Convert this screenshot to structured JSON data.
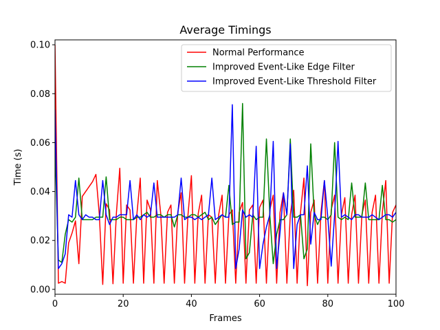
{
  "chart_data": {
    "type": "line",
    "title": "Average Timings",
    "xlabel": "Frames",
    "ylabel": "Time (s)",
    "xlim": [
      0,
      100
    ],
    "ylim": [
      -0.002,
      0.102
    ],
    "xticks": [
      0,
      20,
      40,
      60,
      80,
      100
    ],
    "yticks": [
      0.0,
      0.02,
      0.04,
      0.06,
      0.08,
      0.1
    ],
    "xtick_labels": [
      "0",
      "20",
      "40",
      "60",
      "80",
      "100"
    ],
    "ytick_labels": [
      "0.00",
      "0.02",
      "0.04",
      "0.06",
      "0.08",
      "0.10"
    ],
    "grid": false,
    "legend_position": "top-right",
    "series": [
      {
        "name": "Normal Performance",
        "color": "#ff0000",
        "values": [
          0.1,
          0.0025,
          0.0032,
          0.0025,
          0.019,
          0.023,
          0.028,
          0.0105,
          0.038,
          0.04,
          0.042,
          0.044,
          0.047,
          0.0305,
          0.002,
          0.035,
          0.0325,
          0.0023,
          0.031,
          0.0495,
          0.0025,
          0.0345,
          0.0325,
          0.0025,
          0.0305,
          0.0455,
          0.0025,
          0.0365,
          0.0325,
          0.0025,
          0.0445,
          0.031,
          0.0025,
          0.0315,
          0.0345,
          0.0025,
          0.0315,
          0.0395,
          0.0025,
          0.0305,
          0.0465,
          0.0025,
          0.031,
          0.0385,
          0.0025,
          0.0305,
          0.0295,
          0.0025,
          0.0305,
          0.0385,
          0.0025,
          0.0305,
          0.0325,
          0.0025,
          0.0315,
          0.0355,
          0.0025,
          0.0325,
          0.0345,
          0.0025,
          0.0335,
          0.0365,
          0.0025,
          0.0325,
          0.0385,
          0.0025,
          0.0315,
          0.0395,
          0.0025,
          0.0305,
          0.0405,
          0.0025,
          0.0315,
          0.0455,
          0.0015,
          0.0315,
          0.0365,
          0.0025,
          0.0315,
          0.0445,
          0.0025,
          0.0325,
          0.0385,
          0.0025,
          0.0305,
          0.0375,
          0.0025,
          0.0305,
          0.0385,
          0.0025,
          0.0305,
          0.0365,
          0.0025,
          0.0315,
          0.0385,
          0.0025,
          0.0315,
          0.0445,
          0.0025,
          0.0315,
          0.0345,
          0.0025
        ]
      },
      {
        "name": "Improved Event-Like Edge Filter",
        "color": "#008000",
        "values": [
          0.058,
          0.012,
          0.011,
          0.0225,
          0.0285,
          0.0275,
          0.0295,
          0.0455,
          0.0285,
          0.0285,
          0.0285,
          0.0285,
          0.0295,
          0.0295,
          0.0295,
          0.046,
          0.0285,
          0.0285,
          0.0285,
          0.0295,
          0.0295,
          0.0285,
          0.0285,
          0.0285,
          0.0295,
          0.0295,
          0.0305,
          0.0315,
          0.0295,
          0.0295,
          0.0305,
          0.0305,
          0.0295,
          0.0305,
          0.0305,
          0.0255,
          0.0305,
          0.0305,
          0.0295,
          0.0295,
          0.0305,
          0.0305,
          0.0295,
          0.0305,
          0.0315,
          0.0285,
          0.0295,
          0.0265,
          0.0285,
          0.0305,
          0.0295,
          0.0425,
          0.0265,
          0.0275,
          0.0275,
          0.076,
          0.0125,
          0.015,
          0.0305,
          0.0285,
          0.0295,
          0.0295,
          0.0615,
          0.0305,
          0.0105,
          0.0225,
          0.0285,
          0.0285,
          0.0305,
          0.0615,
          0.0295,
          0.0295,
          0.0305,
          0.0125,
          0.0165,
          0.0595,
          0.0305,
          0.0265,
          0.0295,
          0.0295,
          0.0285,
          0.0305,
          0.06,
          0.0295,
          0.0285,
          0.0295,
          0.0285,
          0.0435,
          0.0295,
          0.0295,
          0.0295,
          0.0435,
          0.0285,
          0.0285,
          0.0285,
          0.0285,
          0.0425,
          0.0285,
          0.0285,
          0.0275,
          0.0285
        ]
      },
      {
        "name": "Improved Event-Like Threshold Filter",
        "color": "#0000ff",
        "values": [
          0.0735,
          0.0085,
          0.0105,
          0.0145,
          0.0305,
          0.0295,
          0.0445,
          0.0305,
          0.0285,
          0.0305,
          0.0295,
          0.0295,
          0.0285,
          0.0285,
          0.0445,
          0.0305,
          0.0265,
          0.0295,
          0.0295,
          0.0305,
          0.0305,
          0.0305,
          0.0445,
          0.0285,
          0.0305,
          0.0285,
          0.0305,
          0.0295,
          0.0305,
          0.0435,
          0.0295,
          0.0295,
          0.0295,
          0.0295,
          0.0295,
          0.0295,
          0.0305,
          0.0455,
          0.0285,
          0.0295,
          0.0295,
          0.0285,
          0.0295,
          0.0285,
          0.0295,
          0.0305,
          0.0455,
          0.0285,
          0.0295,
          0.0305,
          0.0295,
          0.0295,
          0.0755,
          0.0085,
          0.0165,
          0.0325,
          0.0295,
          0.0305,
          0.0295,
          0.0585,
          0.0085,
          0.0185,
          0.0255,
          0.0305,
          0.0605,
          0.0085,
          0.0235,
          0.0395,
          0.0305,
          0.0595,
          0.0085,
          0.0265,
          0.0305,
          0.0305,
          0.0505,
          0.0185,
          0.0315,
          0.0285,
          0.0285,
          0.0445,
          0.0295,
          0.0095,
          0.0305,
          0.0605,
          0.0295,
          0.0305,
          0.0295,
          0.0285,
          0.0305,
          0.0305,
          0.0295,
          0.0295,
          0.0295,
          0.0305,
          0.0295,
          0.0285,
          0.0295,
          0.0305,
          0.0305,
          0.0295,
          0.0315
        ]
      }
    ]
  }
}
